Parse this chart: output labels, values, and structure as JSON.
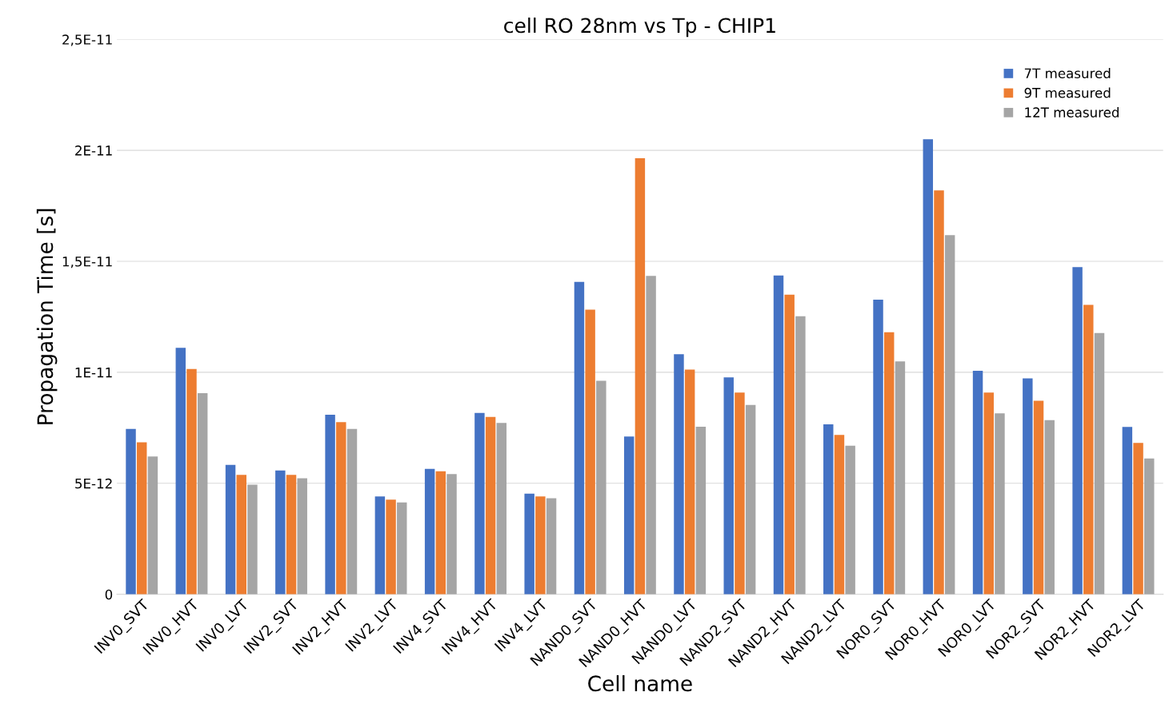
{
  "chart_data": {
    "type": "bar",
    "title": "cell RO 28nm vs Tp - CHIP1",
    "xlabel": "Cell name",
    "ylabel": "Propagation Time [s]",
    "categories": [
      "INV0_SVT",
      "INV0_HVT",
      "INV0_LVT",
      "INV2_SVT",
      "INV2_HVT",
      "INV2_LVT",
      "INV4_SVT",
      "INV4_HVT",
      "INV4_LVT",
      "NAND0_SVT",
      "NAND0_HVT",
      "NAND0_LVT",
      "NAND2_SVT",
      "NAND2_HVT",
      "NAND2_LVT",
      "NOR0_SVT",
      "NOR0_HVT",
      "NOR0_LVT",
      "NOR2_SVT",
      "NOR2_HVT",
      "NOR2_LVT"
    ],
    "series": [
      {
        "name": "7T measured",
        "color": "#4472c4",
        "values": [
          7.45e-12,
          1.11e-11,
          5.83e-12,
          5.58e-12,
          8.09e-12,
          4.41e-12,
          5.65e-12,
          8.17e-12,
          4.53e-12,
          1.407e-11,
          7.11e-12,
          1.082e-11,
          9.77e-12,
          1.436e-11,
          7.66e-12,
          1.327e-11,
          2.05e-11,
          1.007e-11,
          9.73e-12,
          1.474e-11,
          7.54e-12
        ]
      },
      {
        "name": "9T measured",
        "color": "#ed7d31",
        "values": [
          6.85e-12,
          1.015e-11,
          5.38e-12,
          5.38e-12,
          7.76e-12,
          4.26e-12,
          5.54e-12,
          7.99e-12,
          4.41e-12,
          1.282e-11,
          1.965e-11,
          1.012e-11,
          9.09e-12,
          1.35e-11,
          7.18e-12,
          1.181e-11,
          1.82e-11,
          9.09e-12,
          8.72e-12,
          1.304e-11,
          6.82e-12
        ]
      },
      {
        "name": "12T measured",
        "color": "#a5a5a5",
        "values": [
          6.21e-12,
          9.06e-12,
          4.94e-12,
          5.23e-12,
          7.45e-12,
          4.14e-12,
          5.42e-12,
          7.72e-12,
          4.33e-12,
          9.62e-12,
          1.434e-11,
          7.55e-12,
          8.53e-12,
          1.253e-11,
          6.69e-12,
          1.049e-11,
          1.618e-11,
          8.15e-12,
          7.85e-12,
          1.177e-11,
          6.12e-12
        ]
      }
    ],
    "ylim": [
      0,
      2.5e-11
    ],
    "yticks": [
      {
        "value": 0,
        "label": "0"
      },
      {
        "value": 5e-12,
        "label": "5E-12"
      },
      {
        "value": 1e-11,
        "label": "1E-11"
      },
      {
        "value": 1.5e-11,
        "label": "1,5E-11"
      },
      {
        "value": 2e-11,
        "label": "2E-11"
      },
      {
        "value": 2.5e-11,
        "label": "2,5E-11"
      }
    ],
    "grid": "y",
    "legend": "top right"
  }
}
